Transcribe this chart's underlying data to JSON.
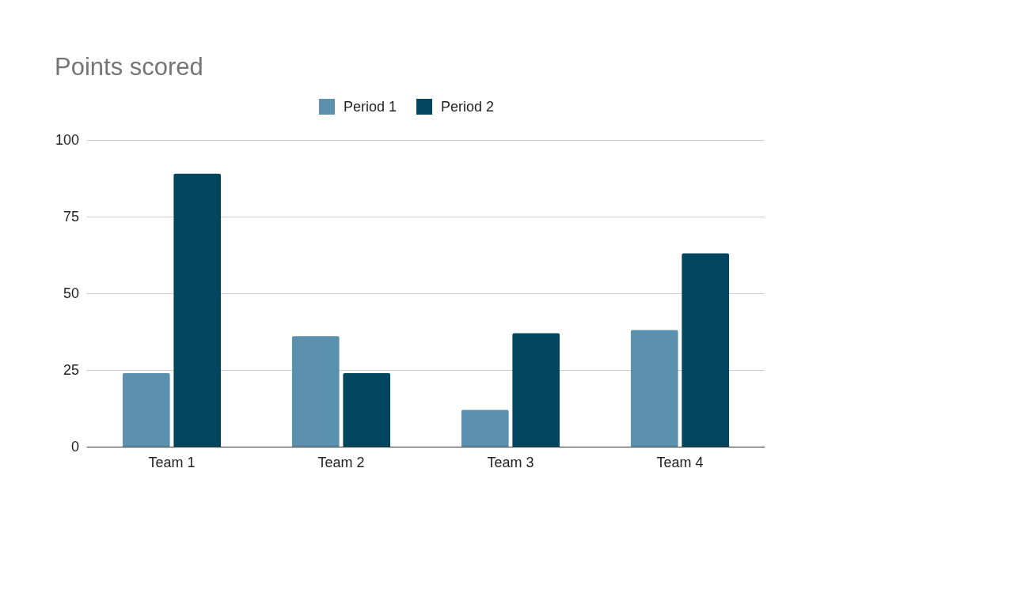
{
  "chart_data": {
    "type": "bar",
    "title": "Points scored",
    "categories": [
      "Team 1",
      "Team 2",
      "Team 3",
      "Team 4"
    ],
    "series": [
      {
        "name": "Period 1",
        "color": "#5b91af",
        "values": [
          24,
          36,
          12,
          38
        ]
      },
      {
        "name": "Period 2",
        "color": "#02455f",
        "values": [
          89,
          24,
          37,
          63
        ]
      }
    ],
    "ylim": [
      0,
      100
    ],
    "yticks": [
      0,
      25,
      50,
      75,
      100
    ],
    "grid": "y",
    "legend": "top"
  }
}
